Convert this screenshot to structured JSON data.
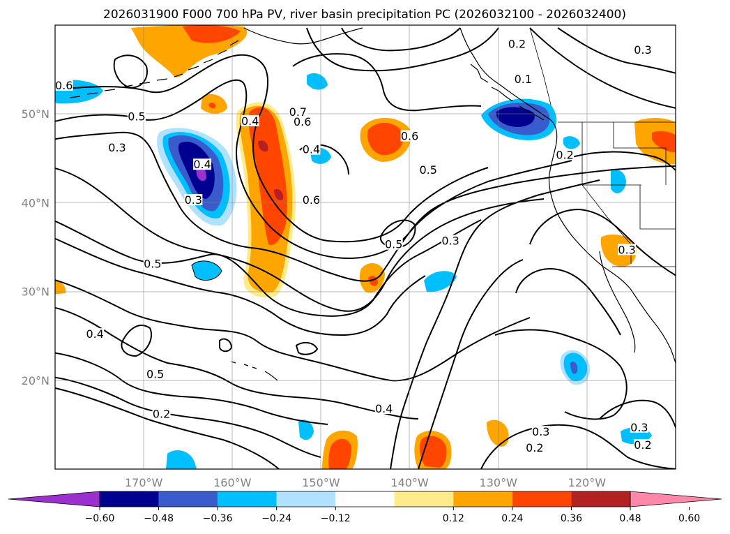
{
  "title": "2026031900 F000 700 hPa PV, river basin precipitation PC (2026032100 - 2026032400)",
  "map": {
    "lon_range": [
      -180,
      -110
    ],
    "lat_range": [
      10,
      60
    ],
    "lon_ticks": [
      {
        "value": -170,
        "label": "170°W"
      },
      {
        "value": -160,
        "label": "160°W"
      },
      {
        "value": -150,
        "label": "150°W"
      },
      {
        "value": -140,
        "label": "140°W"
      },
      {
        "value": -130,
        "label": "130°W"
      },
      {
        "value": -120,
        "label": "120°W"
      }
    ],
    "lat_ticks": [
      {
        "value": 20,
        "label": "20°N"
      },
      {
        "value": 30,
        "label": "30°N"
      },
      {
        "value": 40,
        "label": "40°N"
      },
      {
        "value": 50,
        "label": "50°N"
      }
    ],
    "grid": true
  },
  "colorbar": {
    "ticks": [
      "−0.60",
      "−0.48",
      "−0.36",
      "−0.24",
      "−0.12",
      "0.12",
      "0.24",
      "0.36",
      "0.48",
      "0.60"
    ],
    "colors": [
      "#9a30cd",
      "#000090",
      "#3a5bcc",
      "#00bfff",
      "#b0e2ff",
      "#ffffff",
      "#ffeb8a",
      "#ffa500",
      "#ff4500",
      "#b22222",
      "#ff88aa"
    ]
  },
  "contour_labels": [
    {
      "text": "0.6",
      "lon": -179.0,
      "lat": 53.0
    },
    {
      "text": "0.5",
      "lon": -170.8,
      "lat": 49.5
    },
    {
      "text": "0.3",
      "lon": -173.0,
      "lat": 46.0
    },
    {
      "text": "0.4",
      "lon": -163.4,
      "lat": 44.1
    },
    {
      "text": "0.3",
      "lon": -164.4,
      "lat": 40.1
    },
    {
      "text": "0.4",
      "lon": -158.0,
      "lat": 49.0
    },
    {
      "text": "0.7",
      "lon": -152.6,
      "lat": 50.0
    },
    {
      "text": "0.6",
      "lon": -152.1,
      "lat": 48.9
    },
    {
      "text": "0.4",
      "lon": -151.1,
      "lat": 45.8
    },
    {
      "text": "0.6",
      "lon": -140.0,
      "lat": 47.3
    },
    {
      "text": "0.5",
      "lon": -137.9,
      "lat": 43.5
    },
    {
      "text": "0.6",
      "lon": -151.1,
      "lat": 40.1
    },
    {
      "text": "0.5",
      "lon": -141.8,
      "lat": 35.1
    },
    {
      "text": "0.3",
      "lon": -135.4,
      "lat": 35.5
    },
    {
      "text": "0.5",
      "lon": -169.0,
      "lat": 32.9
    },
    {
      "text": "0.4",
      "lon": -175.5,
      "lat": 25.0
    },
    {
      "text": "0.5",
      "lon": -168.7,
      "lat": 20.5
    },
    {
      "text": "0.2",
      "lon": -168.0,
      "lat": 16.0
    },
    {
      "text": "0.4",
      "lon": -142.9,
      "lat": 16.6
    },
    {
      "text": "0.3",
      "lon": -125.2,
      "lat": 14.0
    },
    {
      "text": "0.2",
      "lon": -125.9,
      "lat": 12.2
    },
    {
      "text": "0.3",
      "lon": -114.1,
      "lat": 14.5
    },
    {
      "text": "0.2",
      "lon": -113.7,
      "lat": 12.5
    },
    {
      "text": "0.2",
      "lon": -122.5,
      "lat": 45.2
    },
    {
      "text": "0.3",
      "lon": -115.5,
      "lat": 34.5
    },
    {
      "text": "0.2",
      "lon": -127.9,
      "lat": 57.7
    },
    {
      "text": "0.3",
      "lon": -113.7,
      "lat": 57.0
    },
    {
      "text": "0.1",
      "lon": -127.2,
      "lat": 53.7
    }
  ]
}
